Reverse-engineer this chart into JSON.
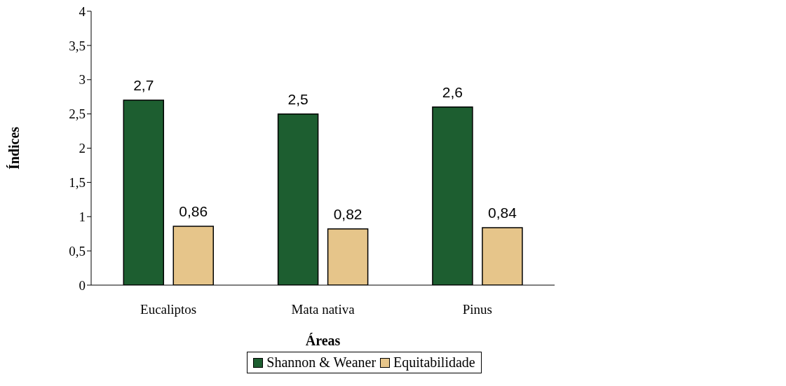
{
  "chart_data": {
    "type": "bar",
    "xlabel": "Áreas",
    "ylabel": "Índices",
    "categories": [
      "Eucaliptos",
      "Mata nativa",
      "Pinus"
    ],
    "series": [
      {
        "name": "Shannon & Weaner",
        "color": "#1d5e30",
        "values": [
          2.7,
          2.5,
          2.6
        ],
        "value_labels": [
          "2,7",
          "2,5",
          "2,6"
        ]
      },
      {
        "name": "Equitabilidade",
        "color": "#e6c58a",
        "values": [
          0.86,
          0.82,
          0.84
        ],
        "value_labels": [
          "0,86",
          "0,82",
          "0,84"
        ]
      }
    ],
    "ylim": [
      0,
      4
    ],
    "yticks": [
      0,
      {
        "value": 0.5,
        "label": "0,5"
      },
      1,
      {
        "value": 1.5,
        "label": "1,5"
      },
      2,
      {
        "value": 2.5,
        "label": "2,5"
      },
      3,
      {
        "value": 3.5,
        "label": "3,5"
      },
      4
    ],
    "grid": false,
    "legend": "bottom"
  }
}
